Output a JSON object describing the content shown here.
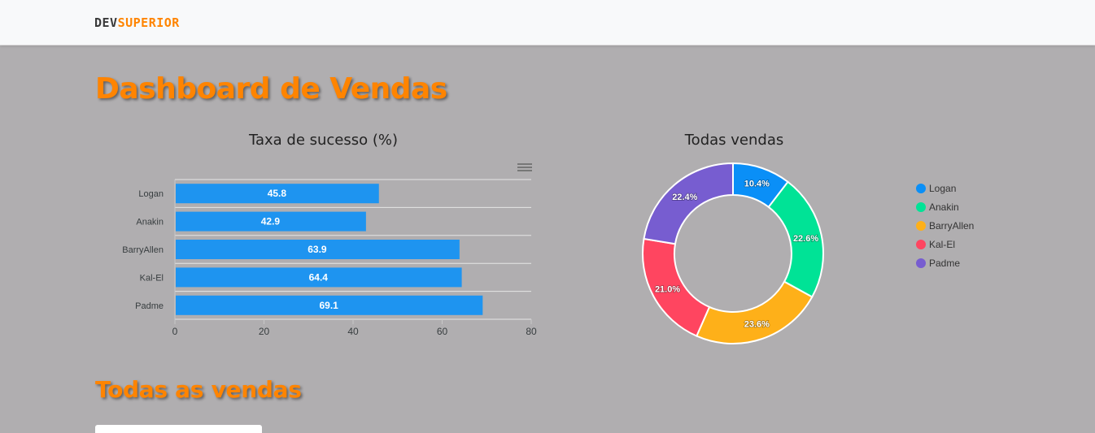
{
  "brand": {
    "part1": "DEV",
    "part2": "SUPERIOR"
  },
  "page_title": "Dashboard de Vendas",
  "section_title": "Todas as vendas",
  "chart_data": [
    {
      "type": "bar",
      "orientation": "horizontal",
      "title": "Taxa de sucesso (%)",
      "categories": [
        "Logan",
        "Anakin",
        "BarryAllen",
        "Kal-El",
        "Padme"
      ],
      "values": [
        45.8,
        42.9,
        63.9,
        64.4,
        69.1
      ],
      "xlim": [
        0,
        80
      ],
      "xticks": [
        0,
        20,
        40,
        60,
        80
      ],
      "grid": true,
      "bar_color": "#1e94f0",
      "data_labels": true
    },
    {
      "type": "pie",
      "variant": "donut",
      "title": "Todas vendas",
      "labels": [
        "Logan",
        "Anakin",
        "BarryAllen",
        "Kal-El",
        "Padme"
      ],
      "values": [
        10.4,
        22.6,
        23.6,
        21.0,
        22.4
      ],
      "value_labels": [
        "10.4%",
        "22.6%",
        "23.6%",
        "21.0%",
        "22.4%"
      ],
      "colors": [
        "#0a8ff7",
        "#00e396",
        "#feb019",
        "#ff4560",
        "#775dd0"
      ],
      "legend": "right"
    }
  ]
}
